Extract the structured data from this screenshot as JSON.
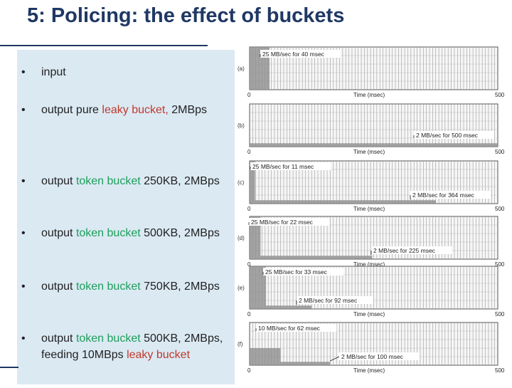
{
  "slide": {
    "title": "5: Policing: the effect of buckets"
  },
  "bullets": [
    {
      "parts": [
        {
          "text": "input",
          "color": "normal"
        }
      ]
    },
    {
      "parts": [
        {
          "text": "output pure ",
          "color": "normal"
        },
        {
          "text": "leaky bucket,",
          "color": "red"
        },
        {
          "text": " 2MBps",
          "color": "normal"
        }
      ]
    },
    {
      "parts": [
        {
          "text": "output ",
          "color": "normal"
        },
        {
          "text": "token bucket",
          "color": "green"
        },
        {
          "text": " 250KB, 2MBps",
          "color": "normal"
        }
      ]
    },
    {
      "parts": [
        {
          "text": "output ",
          "color": "normal"
        },
        {
          "text": "token bucket",
          "color": "green"
        },
        {
          "text": " 500KB, 2MBps",
          "color": "normal"
        }
      ]
    },
    {
      "parts": [
        {
          "text": "output ",
          "color": "normal"
        },
        {
          "text": "token bucket",
          "color": "green"
        },
        {
          "text": " 750KB, 2MBps",
          "color": "normal"
        }
      ]
    },
    {
      "parts": [
        {
          "text": "output ",
          "color": "normal"
        },
        {
          "text": "token bucket",
          "color": "green"
        },
        {
          "text": " 500KB, 2MBps,  feeding 10MBps ",
          "color": "normal"
        },
        {
          "text": "leaky bucket",
          "color": "red"
        }
      ]
    }
  ],
  "colors": {
    "title": "#1f3864",
    "panel": "#dbe9f3",
    "red": "#c0392b",
    "green": "#1e9e5a"
  },
  "chart_data": {
    "type": "area",
    "x_range": [
      0,
      500
    ],
    "x_unit": "msec",
    "panels": [
      {
        "label": "(a)",
        "xlabel": "Time (msec)",
        "x_start": "0",
        "x_end": "500",
        "segments": [
          {
            "rate_MBps": 25,
            "duration_msec": 40
          }
        ],
        "annotations": [
          "25 MB/sec for 40 msec"
        ]
      },
      {
        "label": "(b)",
        "xlabel": "Time (msec)",
        "x_start": "0",
        "x_end": "500",
        "segments": [
          {
            "rate_MBps": 2,
            "duration_msec": 500
          }
        ],
        "annotations": [
          "2 MB/sec for 500 msec"
        ]
      },
      {
        "label": "(c)",
        "xlabel": "Time (msec)",
        "x_start": "0",
        "x_end": "500",
        "segments": [
          {
            "rate_MBps": 25,
            "duration_msec": 11
          },
          {
            "rate_MBps": 2,
            "duration_msec": 364
          }
        ],
        "annotations": [
          "25 MB/sec for 11 msec",
          "2 MB/sec for 364 msec"
        ]
      },
      {
        "label": "(d)",
        "xlabel": "Time (msec)",
        "x_start": "0",
        "x_end": "500",
        "segments": [
          {
            "rate_MBps": 25,
            "duration_msec": 22
          },
          {
            "rate_MBps": 2,
            "duration_msec": 225
          }
        ],
        "annotations": [
          "25 MB/sec for 22 msec",
          "2 MB/sec for 225 msec"
        ]
      },
      {
        "label": "(e)",
        "xlabel": "Time (msec)",
        "x_start": "0",
        "x_end": "500",
        "segments": [
          {
            "rate_MBps": 25,
            "duration_msec": 33
          },
          {
            "rate_MBps": 2,
            "duration_msec": 92
          }
        ],
        "annotations": [
          "25 MB/sec for 33 msec",
          "2 MB/sec for 92 msec"
        ]
      },
      {
        "label": "(f)",
        "xlabel": "Time (msec)",
        "x_start": "0",
        "x_end": "500",
        "segments": [
          {
            "rate_MBps": 10,
            "duration_msec": 62
          },
          {
            "rate_MBps": 2,
            "duration_msec": 100
          }
        ],
        "annotations": [
          "10 MB/sec for 62 msec",
          "2 MB/sec for 100 msec"
        ]
      }
    ]
  }
}
